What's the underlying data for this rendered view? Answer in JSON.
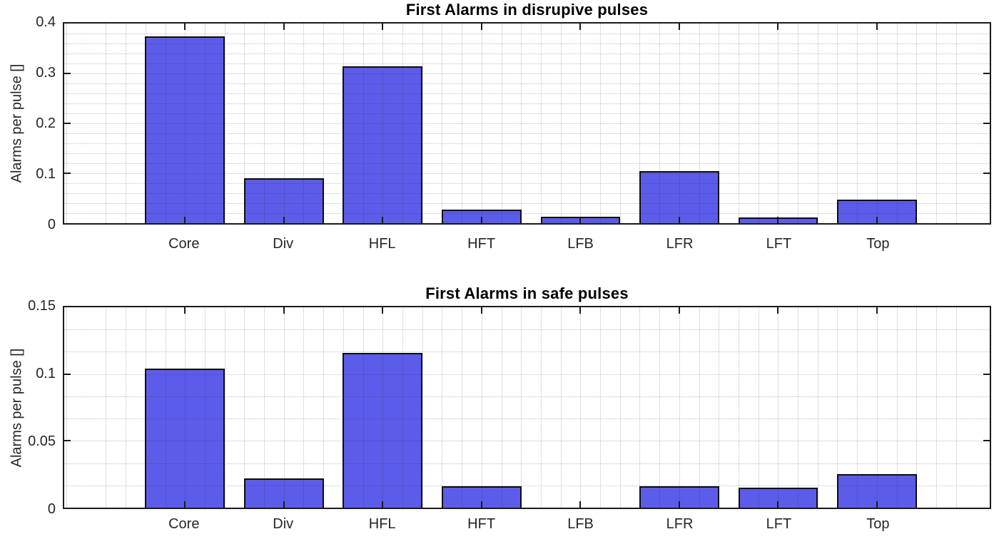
{
  "figure": {
    "background": "#ffffff",
    "axis_color": "#1b1b1b",
    "text_color": "#262626"
  },
  "chart_data": [
    {
      "type": "bar",
      "title": "First Alarms in disrupive pulses",
      "ylabel": "Alarms per pulse []",
      "xlabel": "",
      "categories": [
        "Core",
        "Div",
        "HFL",
        "HFT",
        "LFB",
        "LFR",
        "LFT",
        "Top"
      ],
      "values": [
        0.375,
        0.09,
        0.315,
        0.027,
        0.013,
        0.104,
        0.011,
        0.047
      ],
      "ylim": [
        0,
        0.4
      ],
      "yticks": [
        0,
        0.1,
        0.2,
        0.3,
        0.4
      ],
      "ytick_labels": [
        "0",
        "0.1",
        "0.2",
        "0.3",
        "0.4"
      ],
      "y_minor_divisions": 5,
      "x_minor_divisions": 5,
      "grid": "major+minor",
      "legend": "none",
      "bar_color": "#5c5cea",
      "bar_edge_color": "#0d0d0d"
    },
    {
      "type": "bar",
      "title": "First Alarms in safe pulses",
      "ylabel": "Alarms per pulse []",
      "xlabel": "",
      "categories": [
        "Core",
        "Div",
        "HFL",
        "HFT",
        "LFB",
        "LFR",
        "LFT",
        "Top"
      ],
      "values": [
        0.104,
        0.022,
        0.116,
        0.016,
        0,
        0.016,
        0.015,
        0.025
      ],
      "ylim": [
        0,
        0.15
      ],
      "yticks": [
        0,
        0.05,
        0.1,
        0.15
      ],
      "ytick_labels": [
        "0",
        "0.05",
        "0.1",
        "0.15"
      ],
      "y_minor_divisions": 3,
      "x_minor_divisions": 5,
      "grid": "major+minor",
      "legend": "none",
      "bar_color": "#5c5cea",
      "bar_edge_color": "#0d0d0d"
    }
  ]
}
